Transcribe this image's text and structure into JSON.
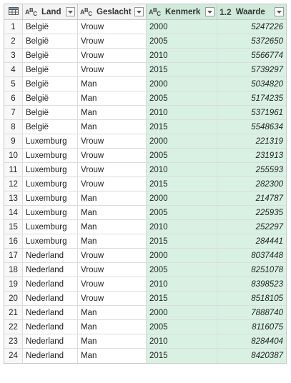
{
  "columns": [
    {
      "name": "Land",
      "type_icon": "abc-text-icon"
    },
    {
      "name": "Geslacht",
      "type_icon": "abc-text-icon"
    },
    {
      "name": "Kenmerk",
      "type_icon": "abc-text-icon"
    },
    {
      "name": "Waarde",
      "type_icon": "decimal-number-icon",
      "type_label": "1.2"
    }
  ],
  "rows": [
    {
      "idx": "1",
      "land": "België",
      "geslacht": "Vrouw",
      "kenmerk": "2000",
      "waarde": "5247226"
    },
    {
      "idx": "2",
      "land": "België",
      "geslacht": "Vrouw",
      "kenmerk": "2005",
      "waarde": "5372650"
    },
    {
      "idx": "3",
      "land": "België",
      "geslacht": "Vrouw",
      "kenmerk": "2010",
      "waarde": "5566774"
    },
    {
      "idx": "4",
      "land": "België",
      "geslacht": "Vrouw",
      "kenmerk": "2015",
      "waarde": "5739297"
    },
    {
      "idx": "5",
      "land": "België",
      "geslacht": "Man",
      "kenmerk": "2000",
      "waarde": "5034820"
    },
    {
      "idx": "6",
      "land": "België",
      "geslacht": "Man",
      "kenmerk": "2005",
      "waarde": "5174235"
    },
    {
      "idx": "7",
      "land": "België",
      "geslacht": "Man",
      "kenmerk": "2010",
      "waarde": "5371961"
    },
    {
      "idx": "8",
      "land": "België",
      "geslacht": "Man",
      "kenmerk": "2015",
      "waarde": "5548634"
    },
    {
      "idx": "9",
      "land": "Luxemburg",
      "geslacht": "Vrouw",
      "kenmerk": "2000",
      "waarde": "221319"
    },
    {
      "idx": "10",
      "land": "Luxemburg",
      "geslacht": "Vrouw",
      "kenmerk": "2005",
      "waarde": "231913"
    },
    {
      "idx": "11",
      "land": "Luxemburg",
      "geslacht": "Vrouw",
      "kenmerk": "2010",
      "waarde": "255593"
    },
    {
      "idx": "12",
      "land": "Luxemburg",
      "geslacht": "Vrouw",
      "kenmerk": "2015",
      "waarde": "282300"
    },
    {
      "idx": "13",
      "land": "Luxemburg",
      "geslacht": "Man",
      "kenmerk": "2000",
      "waarde": "214787"
    },
    {
      "idx": "14",
      "land": "Luxemburg",
      "geslacht": "Man",
      "kenmerk": "2005",
      "waarde": "225935"
    },
    {
      "idx": "15",
      "land": "Luxemburg",
      "geslacht": "Man",
      "kenmerk": "2010",
      "waarde": "252297"
    },
    {
      "idx": "16",
      "land": "Luxemburg",
      "geslacht": "Man",
      "kenmerk": "2015",
      "waarde": "284441"
    },
    {
      "idx": "17",
      "land": "Nederland",
      "geslacht": "Vrouw",
      "kenmerk": "2000",
      "waarde": "8037448"
    },
    {
      "idx": "18",
      "land": "Nederland",
      "geslacht": "Vrouw",
      "kenmerk": "2005",
      "waarde": "8251078"
    },
    {
      "idx": "19",
      "land": "Nederland",
      "geslacht": "Vrouw",
      "kenmerk": "2010",
      "waarde": "8398523"
    },
    {
      "idx": "20",
      "land": "Nederland",
      "geslacht": "Vrouw",
      "kenmerk": "2015",
      "waarde": "8518105"
    },
    {
      "idx": "21",
      "land": "Nederland",
      "geslacht": "Man",
      "kenmerk": "2000",
      "waarde": "7888740"
    },
    {
      "idx": "22",
      "land": "Nederland",
      "geslacht": "Man",
      "kenmerk": "2005",
      "waarde": "8116075"
    },
    {
      "idx": "23",
      "land": "Nederland",
      "geslacht": "Man",
      "kenmerk": "2010",
      "waarde": "8284404"
    },
    {
      "idx": "24",
      "land": "Nederland",
      "geslacht": "Man",
      "kenmerk": "2015",
      "waarde": "8420387"
    }
  ],
  "colors": {
    "selected_column_bg": "#d9f1e3",
    "header_bg": "#f3f3f3",
    "border": "#c8c8c8"
  }
}
